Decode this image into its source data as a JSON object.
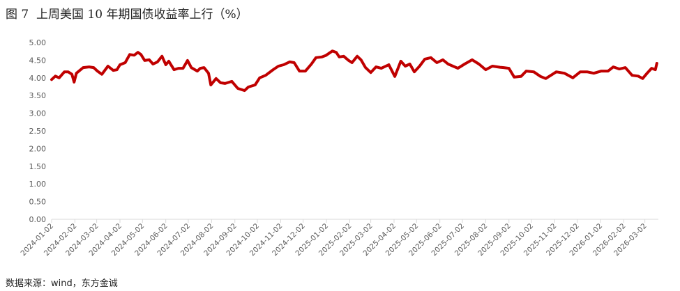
{
  "title": "图 7  上周美国 10 年期国债收益率上行（%）",
  "source": "数据来源：wind，东方金诚",
  "chart_data": {
    "type": "line",
    "title": "图 7  上周美国 10 年期国债收益率上行（%）",
    "xlabel": "",
    "ylabel": "",
    "ylim": [
      0,
      5
    ],
    "yticks": [
      "0.00",
      "0.50",
      "1.00",
      "1.50",
      "2.00",
      "2.50",
      "3.00",
      "3.50",
      "4.00",
      "4.50",
      "5.00"
    ],
    "xticks": [
      "2024-01-02",
      "2024-02-02",
      "2024-03-02",
      "2024-04-02",
      "2024-05-02",
      "2024-06-02",
      "2024-07-02",
      "2024-08-02",
      "2024-09-02",
      "2024-10-02",
      "2024-11-02",
      "2024-12-02",
      "2025-01-02",
      "2025-02-02",
      "2025-03-02",
      "2025-04-02",
      "2025-05-02",
      "2025-06-02",
      "2025-07-02",
      "2025-08-02",
      "2025-09-02",
      "2025-10-02",
      "2025-11-02",
      "2025-12-02",
      "2026-01-02",
      "2026-02-02",
      "2026-03-02"
    ],
    "grid": false,
    "legend": "none",
    "line_color": "#C00000",
    "series": [
      {
        "x": [
          "2024-01-02",
          "2024-01-07",
          "2024-01-12",
          "2024-01-19",
          "2024-01-24",
          "2024-01-29",
          "2024-02-01",
          "2024-02-04",
          "2024-02-13",
          "2024-02-21",
          "2024-02-27",
          "2024-03-03",
          "2024-03-09",
          "2024-03-17",
          "2024-03-24",
          "2024-03-29",
          "2024-04-02",
          "2024-04-09",
          "2024-04-15",
          "2024-04-21",
          "2024-04-26",
          "2024-04-30",
          "2024-05-05",
          "2024-05-11",
          "2024-05-16",
          "2024-05-22",
          "2024-05-28",
          "2024-06-02",
          "2024-06-06",
          "2024-06-13",
          "2024-06-19",
          "2024-06-25",
          "2024-07-01",
          "2024-07-06",
          "2024-07-14",
          "2024-07-18",
          "2024-07-23",
          "2024-07-29",
          "2024-08-01",
          "2024-08-08",
          "2024-08-14",
          "2024-08-20",
          "2024-08-29",
          "2024-09-06",
          "2024-09-15",
          "2024-09-20",
          "2024-09-29",
          "2024-10-05",
          "2024-10-13",
          "2024-10-23",
          "2024-10-30",
          "2024-11-06",
          "2024-11-14",
          "2024-11-20",
          "2024-11-27",
          "2024-12-05",
          "2024-12-13",
          "2024-12-19",
          "2024-12-27",
          "2025-01-01",
          "2025-01-10",
          "2025-01-15",
          "2025-01-19",
          "2025-01-25",
          "2025-01-31",
          "2025-02-05",
          "2025-02-12",
          "2025-02-17",
          "2025-02-23",
          "2025-03-02",
          "2025-03-09",
          "2025-03-16",
          "2025-03-26",
          "2025-04-03",
          "2025-04-11",
          "2025-04-17",
          "2025-04-23",
          "2025-04-29",
          "2025-05-06",
          "2025-05-13",
          "2025-05-21",
          "2025-05-29",
          "2025-06-06",
          "2025-06-13",
          "2025-06-26",
          "2025-07-05",
          "2025-07-15",
          "2025-07-24",
          "2025-08-02",
          "2025-08-11",
          "2025-08-21",
          "2025-08-26",
          "2025-09-02",
          "2025-09-09",
          "2025-09-18",
          "2025-09-25",
          "2025-10-05",
          "2025-10-14",
          "2025-10-21",
          "2025-10-30",
          "2025-11-04",
          "2025-11-15",
          "2025-11-26",
          "2025-12-06",
          "2025-12-15",
          "2025-12-24",
          "2026-01-03",
          "2026-01-12",
          "2026-01-19",
          "2026-01-27",
          "2026-02-04",
          "2026-02-13",
          "2026-02-21",
          "2026-02-27",
          "2026-03-05",
          "2026-03-11",
          "2026-03-16",
          "2026-03-18"
        ],
        "values": [
          3.95,
          4.05,
          4.0,
          4.17,
          4.17,
          4.1,
          3.88,
          4.13,
          4.29,
          4.31,
          4.29,
          4.19,
          4.1,
          4.33,
          4.21,
          4.23,
          4.37,
          4.43,
          4.66,
          4.64,
          4.72,
          4.66,
          4.49,
          4.51,
          4.39,
          4.45,
          4.61,
          4.37,
          4.47,
          4.23,
          4.27,
          4.27,
          4.49,
          4.29,
          4.19,
          4.27,
          4.29,
          4.13,
          3.8,
          3.98,
          3.86,
          3.84,
          3.9,
          3.7,
          3.64,
          3.74,
          3.8,
          4.0,
          4.07,
          4.23,
          4.33,
          4.37,
          4.45,
          4.43,
          4.19,
          4.19,
          4.39,
          4.57,
          4.59,
          4.63,
          4.76,
          4.72,
          4.59,
          4.61,
          4.5,
          4.43,
          4.61,
          4.51,
          4.29,
          4.15,
          4.31,
          4.27,
          4.37,
          4.04,
          4.47,
          4.33,
          4.39,
          4.17,
          4.33,
          4.53,
          4.57,
          4.43,
          4.51,
          4.39,
          4.27,
          4.39,
          4.51,
          4.39,
          4.23,
          4.33,
          4.3,
          4.29,
          4.27,
          4.02,
          4.04,
          4.19,
          4.17,
          4.04,
          3.98,
          4.1,
          4.17,
          4.13,
          4.0,
          4.17,
          4.17,
          4.13,
          4.19,
          4.19,
          4.31,
          4.25,
          4.29,
          4.07,
          4.05,
          3.98,
          4.13,
          4.27,
          4.23,
          4.41
        ]
      }
    ]
  }
}
